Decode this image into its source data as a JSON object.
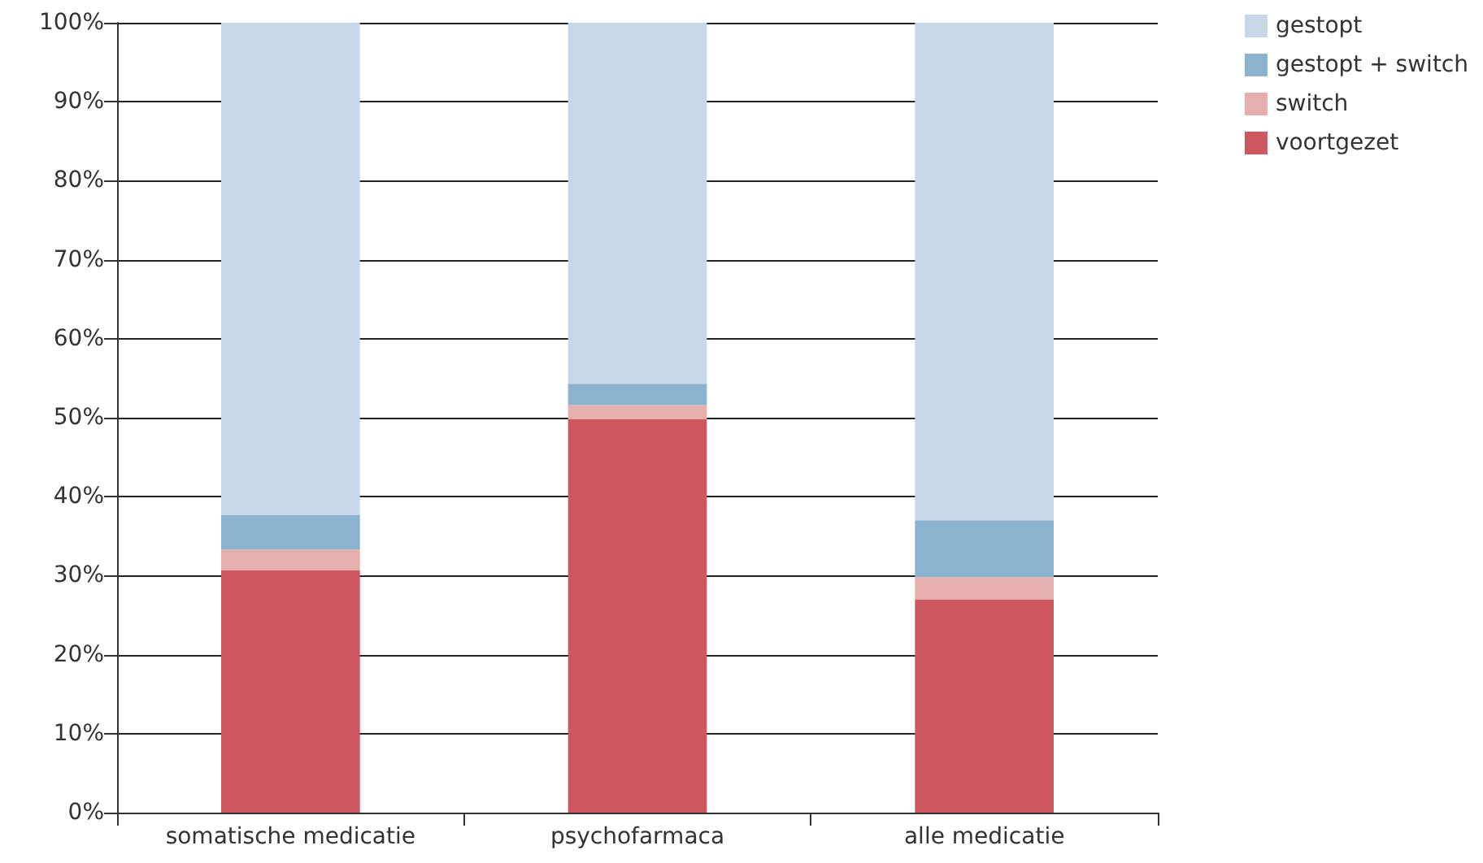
{
  "chart_data": {
    "type": "bar",
    "stacked": true,
    "categories": [
      "somatische medicatie",
      "psychofarmaca",
      "alle medicatie"
    ],
    "series": [
      {
        "name": "voortgezet",
        "color": "#cd5660",
        "values": [
          30.7,
          49.8,
          27.0
        ]
      },
      {
        "name": "switch",
        "color": "#e6aeac",
        "values": [
          2.6,
          1.8,
          2.8
        ]
      },
      {
        "name": "gestopt + switch",
        "color": "#8bb3cf",
        "values": [
          4.4,
          2.7,
          7.2
        ]
      },
      {
        "name": "gestopt",
        "color": "#c8d7e8",
        "values": [
          62.3,
          45.7,
          63.0
        ]
      }
    ],
    "ylim": [
      0,
      100
    ],
    "yticks": [
      {
        "value": 0,
        "label": "0%"
      },
      {
        "value": 10,
        "label": "10%"
      },
      {
        "value": 20,
        "label": "20%"
      },
      {
        "value": 30,
        "label": "30%"
      },
      {
        "value": 40,
        "label": "40%"
      },
      {
        "value": 50,
        "label": "50%"
      },
      {
        "value": 60,
        "label": "60%"
      },
      {
        "value": 70,
        "label": "70%"
      },
      {
        "value": 80,
        "label": "80%"
      },
      {
        "value": 90,
        "label": "90%"
      },
      {
        "value": 100,
        "label": "100%"
      }
    ],
    "grid": "y",
    "legend": "top right"
  }
}
